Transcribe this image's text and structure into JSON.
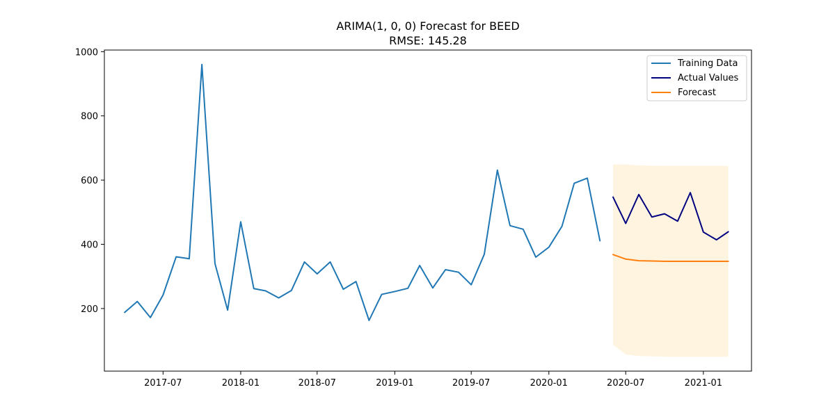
{
  "chart_data": {
    "type": "line",
    "title": "ARIMA(1, 0, 0) Forecast for BEED",
    "subtitle": "RMSE: 145.28",
    "xlabel": "",
    "ylabel": "",
    "xlim": [
      "2017-02-12",
      "2021-04-25"
    ],
    "ylim": [
      5,
      1005
    ],
    "x_ticks": [
      {
        "date": "2017-07-01",
        "label": "2017-07"
      },
      {
        "date": "2018-01-01",
        "label": "2018-01"
      },
      {
        "date": "2018-07-01",
        "label": "2018-07"
      },
      {
        "date": "2019-01-01",
        "label": "2019-01"
      },
      {
        "date": "2019-07-01",
        "label": "2019-07"
      },
      {
        "date": "2020-01-01",
        "label": "2020-01"
      },
      {
        "date": "2020-07-01",
        "label": "2020-07"
      },
      {
        "date": "2021-01-01",
        "label": "2021-01"
      }
    ],
    "y_ticks": [
      200,
      400,
      600,
      800,
      1000
    ],
    "grid": false,
    "legend_position": "top-right",
    "series": [
      {
        "name": "Training Data",
        "color": "#1f77b4",
        "x": [
          "2017-04-01",
          "2017-05-01",
          "2017-06-01",
          "2017-07-01",
          "2017-08-01",
          "2017-09-01",
          "2017-10-01",
          "2017-11-01",
          "2017-12-01",
          "2018-01-01",
          "2018-02-01",
          "2018-03-01",
          "2018-04-01",
          "2018-05-01",
          "2018-06-01",
          "2018-07-01",
          "2018-08-01",
          "2018-09-01",
          "2018-10-01",
          "2018-11-01",
          "2018-12-01",
          "2019-01-01",
          "2019-02-01",
          "2019-03-01",
          "2019-04-01",
          "2019-05-01",
          "2019-06-01",
          "2019-07-01",
          "2019-08-01",
          "2019-09-01",
          "2019-10-01",
          "2019-11-01",
          "2019-12-01",
          "2020-01-01",
          "2020-02-01",
          "2020-03-01",
          "2020-04-01",
          "2020-05-01"
        ],
        "y": [
          188,
          222,
          172,
          242,
          361,
          355,
          960,
          340,
          195,
          470,
          262,
          255,
          233,
          256,
          345,
          308,
          345,
          260,
          284,
          163,
          244,
          253,
          263,
          334,
          264,
          321,
          313,
          274,
          369,
          631,
          458,
          447,
          360,
          391,
          456,
          590,
          606,
          411
        ]
      },
      {
        "name": "Actual Values",
        "color": "#000080",
        "x": [
          "2020-06-01",
          "2020-07-01",
          "2020-08-01",
          "2020-09-01",
          "2020-10-01",
          "2020-11-01",
          "2020-12-01",
          "2021-01-01",
          "2021-02-01",
          "2021-03-01"
        ],
        "y": [
          547,
          465,
          555,
          485,
          495,
          472,
          561,
          438,
          414,
          439
        ]
      },
      {
        "name": "Forecast",
        "color": "#ff7f0e",
        "x": [
          "2020-06-01",
          "2020-07-01",
          "2020-08-01",
          "2020-09-01",
          "2020-10-01",
          "2020-11-01",
          "2020-12-01",
          "2021-01-01",
          "2021-02-01",
          "2021-03-01"
        ],
        "y": [
          368,
          354,
          349,
          348,
          347,
          347,
          347,
          347,
          347,
          347
        ]
      }
    ],
    "confidence_band": {
      "color": "#ffa500",
      "opacity": 0.12,
      "x": [
        "2020-06-01",
        "2020-07-01",
        "2020-08-01",
        "2020-09-01",
        "2020-10-01",
        "2020-11-01",
        "2020-12-01",
        "2021-01-01",
        "2021-02-01",
        "2021-03-01"
      ],
      "lower": [
        87,
        57,
        52,
        51,
        50,
        50,
        50,
        50,
        50,
        50
      ],
      "upper": [
        649,
        649,
        646,
        645,
        644,
        644,
        644,
        644,
        644,
        644
      ]
    }
  }
}
